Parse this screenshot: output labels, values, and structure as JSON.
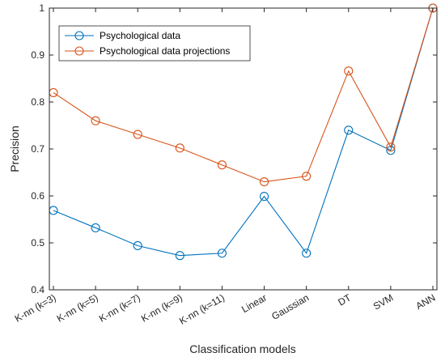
{
  "chart_data": {
    "type": "line",
    "title": "",
    "xlabel": "Classification models",
    "ylabel": "Precision",
    "categories": [
      "K-nn (k=3)",
      "K-nn (k=5)",
      "K-nn (k=7)",
      "K-nn (k=9)",
      "K-nn (k=11)",
      "Linear",
      "Gaussian",
      "DT",
      "SVM",
      "ANN"
    ],
    "ylim": [
      0.4,
      1.0
    ],
    "yticks": [
      "0.4",
      "0.5",
      "0.6",
      "0.7",
      "0.8",
      "0.9",
      "1"
    ],
    "grid": false,
    "legend_position": "top-left",
    "series": [
      {
        "name": "Psychological data",
        "color": "#0072BD",
        "marker": "circle",
        "values": [
          0.569,
          0.532,
          0.494,
          0.473,
          0.478,
          0.599,
          0.478,
          0.74,
          0.697,
          1.0
        ]
      },
      {
        "name": "Psychological data projections",
        "color": "#D95319",
        "marker": "circle",
        "values": [
          0.82,
          0.76,
          0.731,
          0.702,
          0.666,
          0.63,
          0.642,
          0.866,
          0.704,
          1.0
        ]
      }
    ]
  }
}
